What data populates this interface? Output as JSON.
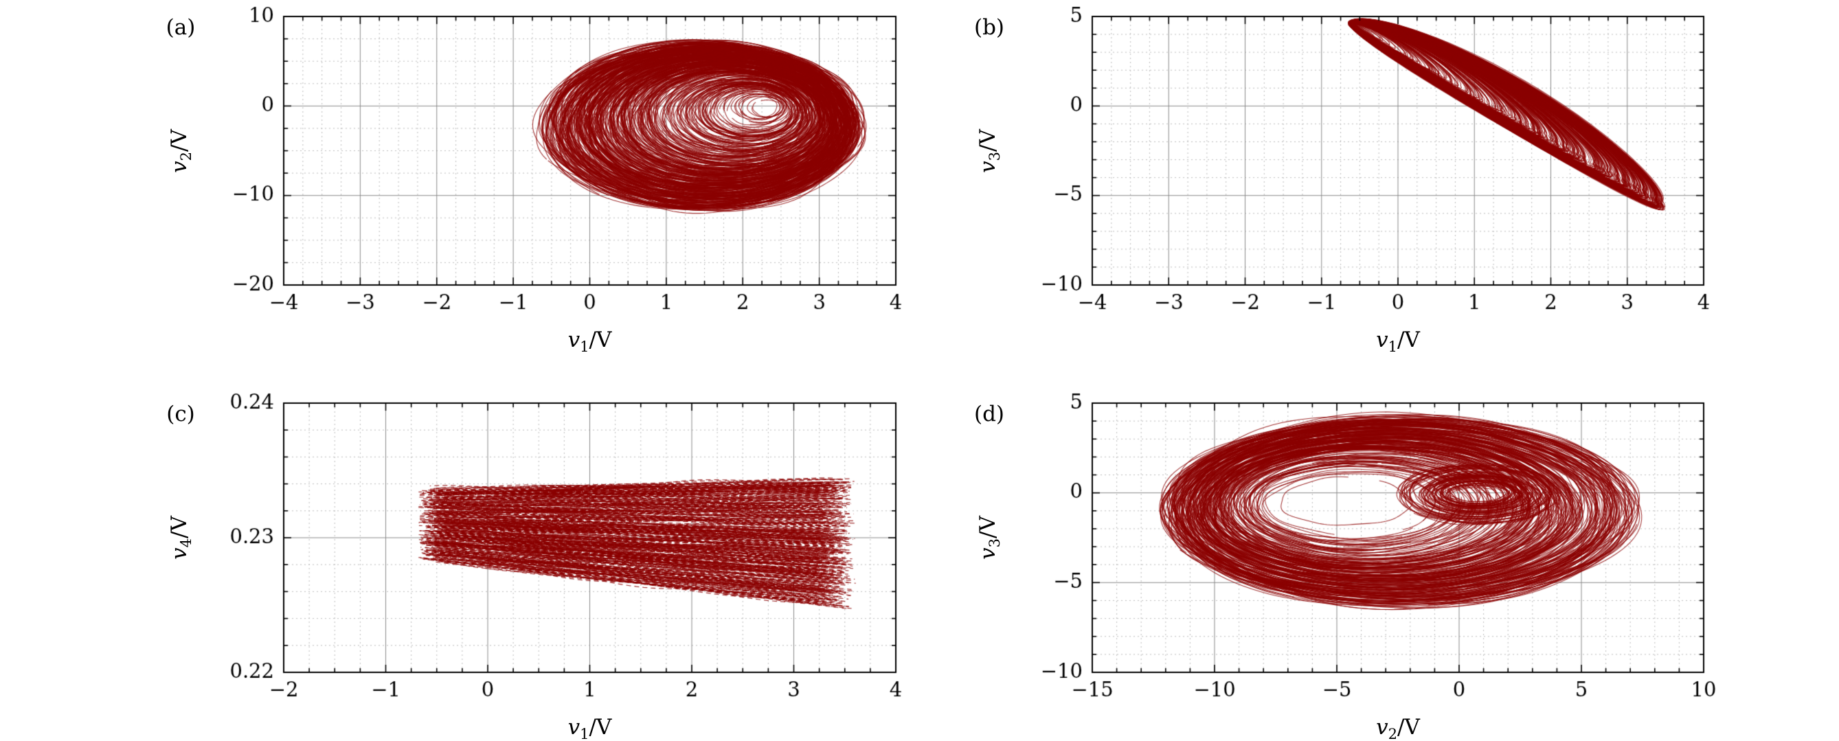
{
  "figure": {
    "background": "#ffffff",
    "grid_major_color": "#8a8a8a",
    "grid_minor_color": "#bcbcbc",
    "axis_color": "#000000"
  },
  "chart_data": [
    {
      "panel": "(a)",
      "type": "scatter",
      "title": "",
      "xlabel": {
        "base": "v",
        "sub": "1",
        "unit": "/V"
      },
      "ylabel": {
        "base": "v",
        "sub": "2",
        "unit": "/V"
      },
      "xlim": [
        -4,
        4
      ],
      "ylim": [
        -20,
        10
      ],
      "xtick_values": [
        -4,
        -3,
        -2,
        -1,
        0,
        1,
        2,
        3,
        4
      ],
      "xtick_labels": [
        "−4",
        "−3",
        "−2",
        "−1",
        "0",
        "1",
        "2",
        "3",
        "4"
      ],
      "ytick_values": [
        -20,
        -10,
        0,
        10
      ],
      "ytick_labels": [
        "−20",
        "−10",
        "0",
        "10"
      ],
      "x_minor_div": 4,
      "y_minor_div": 4,
      "grid": true,
      "color": "#8b0000",
      "content": "Chaotic attractor projection on the v1–v2 plane: dense nested orbits spanning v1 ≈ −0.6..3.5 V and v2 ≈ −12..7.5 V, egg-shaped shell of loops",
      "attractor": {
        "kind": "shell",
        "seed": 7,
        "loops": 430,
        "bias": 0.55,
        "center_in": [
          2.3,
          0.0
        ],
        "center_out": [
          1.45,
          -2.3
        ],
        "r_in": [
          0.15,
          0.8
        ],
        "r_out": [
          2.07,
          9.4
        ],
        "noise": 0.035
      }
    },
    {
      "panel": "(b)",
      "type": "scatter",
      "title": "",
      "xlabel": {
        "base": "v",
        "sub": "1",
        "unit": "/V"
      },
      "ylabel": {
        "base": "v",
        "sub": "3",
        "unit": "/V"
      },
      "xlim": [
        -4,
        4
      ],
      "ylim": [
        -10,
        5
      ],
      "xtick_values": [
        -4,
        -3,
        -2,
        -1,
        0,
        1,
        2,
        3,
        4
      ],
      "xtick_labels": [
        "−4",
        "−3",
        "−2",
        "−1",
        "0",
        "1",
        "2",
        "3",
        "4"
      ],
      "ytick_values": [
        -10,
        -5,
        0,
        5
      ],
      "ytick_labels": [
        "−10",
        "−5",
        "0",
        "5"
      ],
      "x_minor_div": 4,
      "y_minor_div": 5,
      "grid": true,
      "color": "#8b0000",
      "content": "Wing-shaped chaotic attractor on the v1–v3 plane: sharp tip near (−0.6, 4.6), widening to a rounded right edge near (3.5, −5.5)",
      "attractor": {
        "kind": "wing",
        "seed": 13,
        "loops": 360,
        "bias": 0.5,
        "tip": [
          -0.62,
          4.62
        ],
        "end": [
          3.45,
          -3.7
        ],
        "b_up": 1.25,
        "b_down": 2.1,
        "droop": 1.7,
        "noise": 0.03
      }
    },
    {
      "panel": "(c)",
      "type": "scatter",
      "title": "",
      "xlabel": {
        "base": "v",
        "sub": "1",
        "unit": "/V"
      },
      "ylabel": {
        "base": "v",
        "sub": "4",
        "unit": "/V"
      },
      "xlim": [
        -2,
        4
      ],
      "ylim": [
        0.22,
        0.24
      ],
      "xtick_values": [
        -2,
        -1,
        0,
        1,
        2,
        3,
        4
      ],
      "xtick_labels": [
        "−2",
        "−1",
        "0",
        "1",
        "2",
        "3",
        "4"
      ],
      "ytick_values": [
        0.22,
        0.23,
        0.24
      ],
      "ytick_labels": [
        "0.22",
        "0.23",
        "0.24"
      ],
      "x_minor_div": 4,
      "y_minor_div": 5,
      "grid": true,
      "color": "#8b0000",
      "content": "Dense dashed band on the v1–v4 plane: v4 ≈ 0.2247..0.2344 V over v1 ≈ −0.7..3.6 V, wedge widening toward the right",
      "attractor": {
        "kind": "band",
        "seed": 21,
        "strokes": 520,
        "x_left": -0.68,
        "x_right": 3.62,
        "bottom0": 0.2284,
        "bottom_slope": -0.00085,
        "top0": 0.2336,
        "top_slope": 0.00019,
        "noise": 0.00013,
        "dash": [
          7,
          5
        ]
      }
    },
    {
      "panel": "(d)",
      "type": "scatter",
      "title": "",
      "xlabel": {
        "base": "v",
        "sub": "2",
        "unit": "/V"
      },
      "ylabel": {
        "base": "v",
        "sub": "3",
        "unit": "/V"
      },
      "xlim": [
        -15,
        10
      ],
      "ylim": [
        -10,
        5
      ],
      "xtick_values": [
        -15,
        -10,
        -5,
        0,
        5,
        10
      ],
      "xtick_labels": [
        "−15",
        "−10",
        "−5",
        "0",
        "5",
        "10"
      ],
      "ytick_values": [
        -10,
        -5,
        0,
        5
      ],
      "ytick_labels": [
        "−10",
        "−5",
        "0",
        "5"
      ],
      "x_minor_div": 5,
      "y_minor_div": 5,
      "grid": true,
      "color": "#8b0000",
      "content": "Large spiral scroll on the v2–v3 plane centred near (−4, −1), outer loops spanning v2 ≈ −11.7..8 V, with small inner rings around (0.7, 0) leaving a white hole",
      "attractor": {
        "kind": "scroll",
        "seed": 31,
        "big": {
          "loops": 270,
          "bias": 0.5,
          "center_in": [
            -4.7,
            -0.5
          ],
          "center_out": [
            -2.4,
            -1.0
          ],
          "r_in": [
            2.6,
            1.3
          ],
          "r_out": [
            9.6,
            5.2
          ],
          "noise": 0.03
        },
        "small": {
          "loops": 80,
          "bias": 1.0,
          "center_in": [
            0.75,
            -0.05
          ],
          "center_out": [
            0.75,
            -0.05
          ],
          "r_in": [
            1.15,
            0.5
          ],
          "r_out": [
            3.3,
            1.7
          ],
          "noise": 0.04
        }
      }
    }
  ]
}
